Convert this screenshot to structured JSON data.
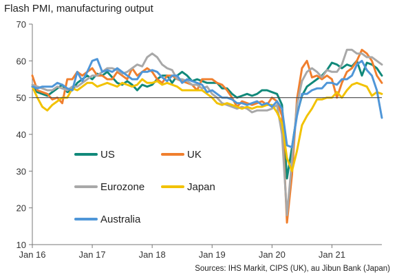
{
  "chart_data": {
    "type": "line",
    "title": "Flash PMI, manufacturing output",
    "source": "Sources: IHS Markit, CIPS (UK), au Jibun Bank (Japan)",
    "ylim": [
      10,
      70
    ],
    "yticks": [
      "10",
      "20",
      "30",
      "40",
      "50",
      "60",
      "70"
    ],
    "xlim": [
      0,
      70
    ],
    "xticks": [
      {
        "label": "Jan 16",
        "x": 0
      },
      {
        "label": "Jan 17",
        "x": 12
      },
      {
        "label": "Jan 18",
        "x": 24
      },
      {
        "label": "Jan 19",
        "x": 36
      },
      {
        "label": "Jan 20",
        "x": 48
      },
      {
        "label": "Jan 21",
        "x": 60
      }
    ],
    "reference_line": 50,
    "grid": false,
    "series": [
      {
        "name": "US",
        "color": "#11897a",
        "values": [
          53,
          51.5,
          51,
          50.5,
          51.5,
          52.5,
          53.5,
          51.5,
          52,
          54,
          55,
          56,
          55,
          56.5,
          56,
          57,
          55.5,
          54,
          53.5,
          54.5,
          53.5,
          52,
          53.5,
          53,
          53.5,
          55,
          56,
          56,
          54,
          56,
          57,
          56,
          54.5,
          55,
          54.5,
          54,
          54,
          54,
          52.5,
          52.5,
          51,
          50,
          50.5,
          51,
          50.5,
          51,
          52,
          52,
          51.5,
          51,
          48,
          28,
          36.5,
          45.5,
          50.5,
          53,
          54,
          55,
          56,
          57.5,
          59.5,
          59,
          58,
          59,
          58.5,
          60,
          56,
          59.5,
          59,
          58,
          56
        ]
      },
      {
        "name": "UK",
        "color": "#f07f2e",
        "values": [
          56,
          52,
          51.5,
          51,
          49.5,
          50,
          48.5,
          55,
          55,
          57,
          56,
          57,
          58,
          56,
          56,
          55,
          55,
          57,
          56,
          55,
          58,
          56,
          57,
          58,
          57,
          55,
          54,
          56,
          56,
          55,
          54.5,
          54,
          53.5,
          52,
          55,
          55,
          55,
          54,
          53.5,
          52,
          50,
          47.5,
          49,
          48.5,
          48,
          48.5,
          49,
          48,
          50,
          49,
          45,
          16,
          29,
          49.5,
          58,
          60,
          55.5,
          56,
          55,
          56,
          55,
          50,
          54,
          57,
          58,
          60,
          63,
          62,
          60,
          56,
          54
        ]
      },
      {
        "name": "Eurozone",
        "color": "#a8a8a8",
        "values": [
          53.5,
          53,
          52.5,
          52,
          52,
          53,
          52.5,
          52,
          53,
          53,
          54,
          55,
          56,
          56,
          57,
          58,
          58,
          57.5,
          56.5,
          57,
          58,
          59,
          58.5,
          61,
          62,
          61,
          59,
          58,
          57.5,
          55,
          55,
          54.5,
          53.5,
          53.5,
          52.5,
          53,
          51,
          50,
          48.5,
          48,
          47.5,
          47,
          47.5,
          47,
          46,
          46.5,
          46.5,
          46.5,
          47,
          48,
          40,
          18,
          33,
          48,
          54.5,
          57,
          58,
          57,
          55.5,
          57.5,
          57,
          57,
          59,
          63,
          63,
          62,
          62,
          61,
          61,
          60,
          59
        ]
      },
      {
        "name": "Japan",
        "color": "#f2c200",
        "values": [
          53,
          50,
          47.5,
          46.5,
          48,
          49,
          50,
          50,
          52.5,
          52,
          53,
          54,
          54,
          53,
          53.5,
          54,
          53.5,
          53,
          54,
          53.5,
          53,
          53.5,
          55,
          54,
          54,
          54.5,
          53.5,
          54,
          53.5,
          53,
          52,
          52,
          52,
          52,
          52,
          51,
          50,
          48.5,
          48,
          48.5,
          48,
          47.5,
          47,
          47.5,
          47,
          47.5,
          47.5,
          48,
          48,
          46,
          43,
          33.5,
          30,
          35.5,
          42.5,
          45,
          47,
          49.5,
          49.5,
          50,
          50,
          51.5,
          50,
          52,
          53.5,
          54,
          53.5,
          53,
          50.5,
          51.5,
          51
        ]
      },
      {
        "name": "Australia",
        "color": "#4f96d8",
        "values": [
          53,
          52.5,
          53,
          53,
          53,
          54,
          53.5,
          52.5,
          52,
          57,
          54.5,
          57,
          60,
          60.5,
          57,
          57.5,
          57,
          58,
          57,
          56,
          55,
          55,
          57,
          57,
          57.5,
          57,
          55.5,
          54.5,
          56,
          56,
          54,
          55,
          54.5,
          54,
          53.5,
          51.5,
          52,
          51,
          50,
          50,
          49.5,
          48.5,
          48.5,
          48,
          48.5,
          49,
          48,
          48.5,
          47.5,
          49,
          47,
          37,
          36.5,
          45,
          51,
          51,
          52,
          52.5,
          52.5,
          54,
          54,
          53.5,
          55,
          55,
          56,
          59,
          60,
          57.5,
          56,
          52,
          44.5
        ]
      }
    ]
  },
  "legend": [
    {
      "name": "US",
      "color": "#11897a"
    },
    {
      "name": "UK",
      "color": "#f07f2e"
    },
    {
      "name": "Eurozone",
      "color": "#a8a8a8"
    },
    {
      "name": "Japan",
      "color": "#f2c200"
    },
    {
      "name": "Australia",
      "color": "#4f96d8"
    }
  ]
}
